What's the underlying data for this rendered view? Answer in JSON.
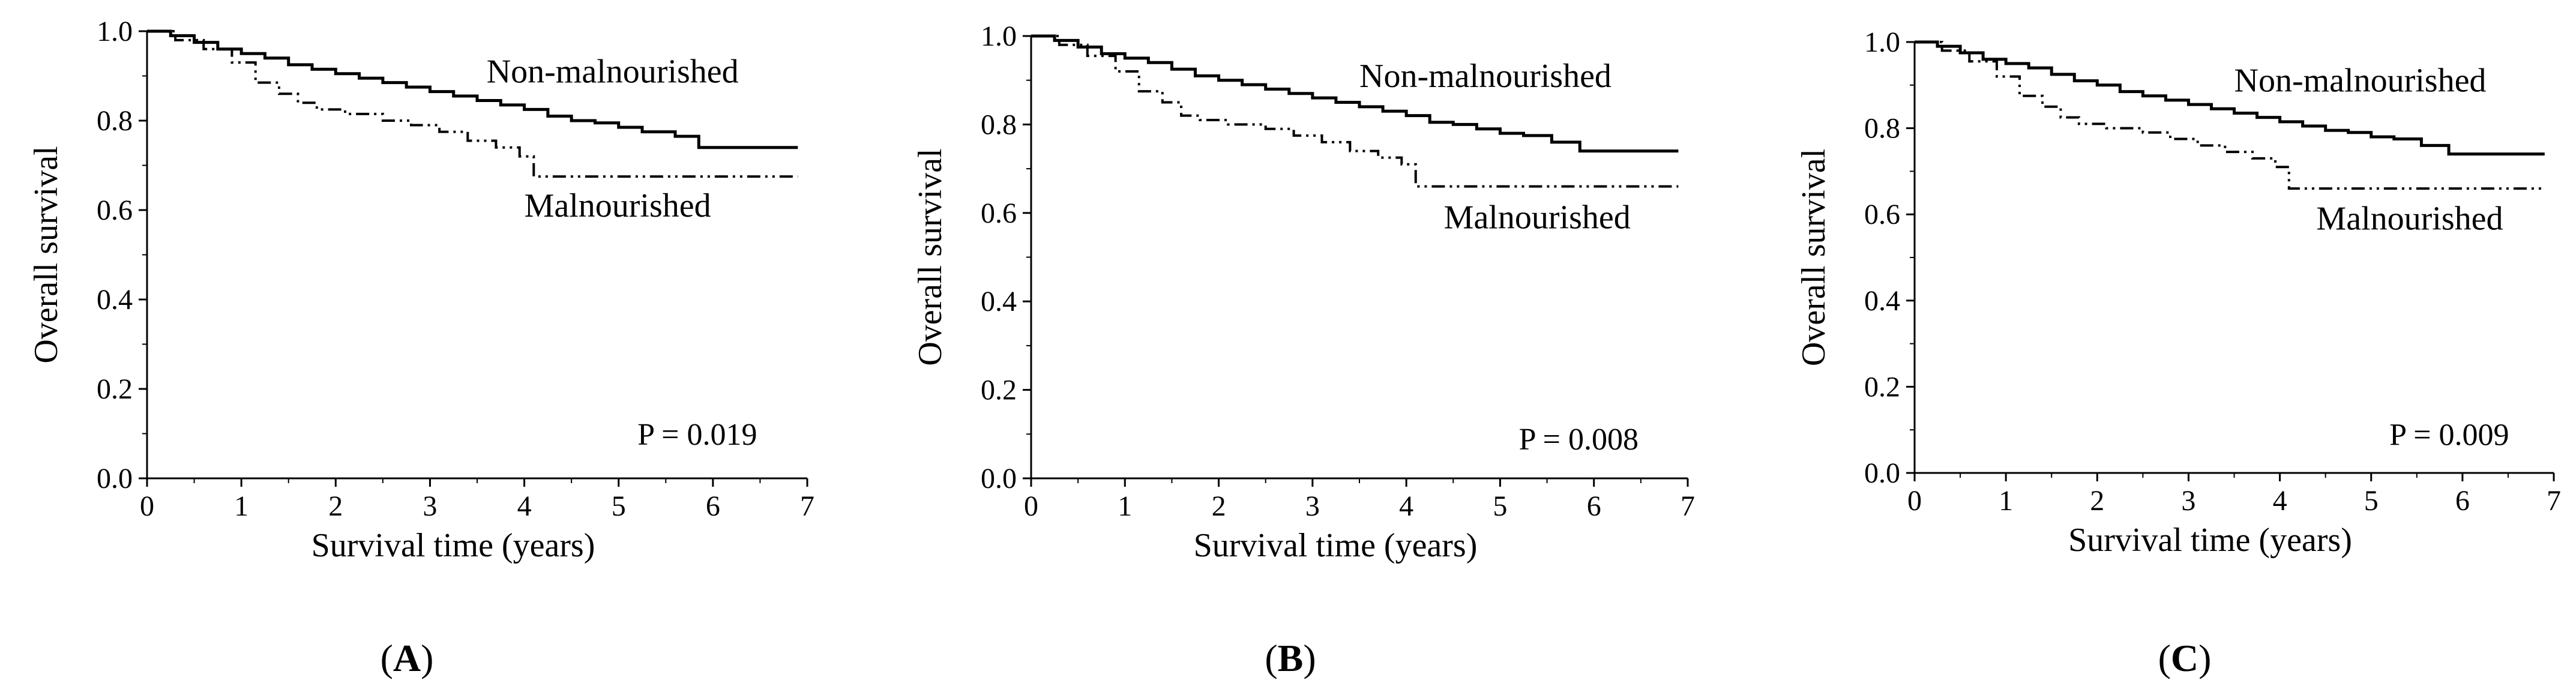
{
  "chart_data": [
    {
      "type": "line",
      "panel": "A",
      "xlabel": "Survival time (years)",
      "ylabel": "Overall survival",
      "xlim": [
        0,
        7
      ],
      "ylim": [
        0.0,
        1.0
      ],
      "xticks": [
        "0",
        "1",
        "2",
        "3",
        "4",
        "5",
        "6",
        "7"
      ],
      "yticks": [
        "0.0",
        "0.2",
        "0.4",
        "0.6",
        "0.8",
        "1.0"
      ],
      "p_value": "P = 0.019",
      "series": [
        {
          "name": "Non-malnourished",
          "style": "solid",
          "points": [
            [
              0,
              1.0
            ],
            [
              0.25,
              0.99
            ],
            [
              0.5,
              0.975
            ],
            [
              0.75,
              0.96
            ],
            [
              1.0,
              0.95
            ],
            [
              1.25,
              0.94
            ],
            [
              1.5,
              0.925
            ],
            [
              1.75,
              0.915
            ],
            [
              2.0,
              0.905
            ],
            [
              2.25,
              0.895
            ],
            [
              2.5,
              0.885
            ],
            [
              2.75,
              0.875
            ],
            [
              3.0,
              0.865
            ],
            [
              3.25,
              0.855
            ],
            [
              3.5,
              0.845
            ],
            [
              3.75,
              0.835
            ],
            [
              4.0,
              0.825
            ],
            [
              4.25,
              0.81
            ],
            [
              4.5,
              0.8
            ],
            [
              4.75,
              0.795
            ],
            [
              5.0,
              0.785
            ],
            [
              5.25,
              0.775
            ],
            [
              5.6,
              0.765
            ],
            [
              5.85,
              0.74
            ],
            [
              6.9,
              0.74
            ]
          ]
        },
        {
          "name": "Malnourished",
          "style": "dash-dot-dot",
          "points": [
            [
              0,
              1.0
            ],
            [
              0.3,
              0.98
            ],
            [
              0.6,
              0.96
            ],
            [
              0.9,
              0.93
            ],
            [
              1.15,
              0.885
            ],
            [
              1.4,
              0.86
            ],
            [
              1.6,
              0.84
            ],
            [
              1.8,
              0.825
            ],
            [
              2.1,
              0.815
            ],
            [
              2.5,
              0.8
            ],
            [
              2.8,
              0.79
            ],
            [
              3.1,
              0.775
            ],
            [
              3.4,
              0.755
            ],
            [
              3.7,
              0.74
            ],
            [
              3.95,
              0.72
            ],
            [
              4.1,
              0.675
            ],
            [
              5.0,
              0.675
            ],
            [
              6.9,
              0.675
            ]
          ]
        }
      ]
    },
    {
      "type": "line",
      "panel": "B",
      "xlabel": "Survival time (years)",
      "ylabel": "Overall survival",
      "xlim": [
        0,
        7
      ],
      "ylim": [
        0.0,
        1.0
      ],
      "xticks": [
        "0",
        "1",
        "2",
        "3",
        "4",
        "5",
        "6",
        "7"
      ],
      "yticks": [
        "0.0",
        "0.2",
        "0.4",
        "0.6",
        "0.8",
        "1.0"
      ],
      "p_value": "P = 0.008",
      "series": [
        {
          "name": "Non-malnourished",
          "style": "solid",
          "points": [
            [
              0,
              1.0
            ],
            [
              0.25,
              0.99
            ],
            [
              0.5,
              0.975
            ],
            [
              0.75,
              0.96
            ],
            [
              1.0,
              0.95
            ],
            [
              1.25,
              0.94
            ],
            [
              1.5,
              0.925
            ],
            [
              1.75,
              0.91
            ],
            [
              2.0,
              0.9
            ],
            [
              2.25,
              0.89
            ],
            [
              2.5,
              0.88
            ],
            [
              2.75,
              0.87
            ],
            [
              3.0,
              0.86
            ],
            [
              3.25,
              0.85
            ],
            [
              3.5,
              0.84
            ],
            [
              3.75,
              0.83
            ],
            [
              4.0,
              0.82
            ],
            [
              4.25,
              0.805
            ],
            [
              4.5,
              0.8
            ],
            [
              4.75,
              0.79
            ],
            [
              5.0,
              0.78
            ],
            [
              5.25,
              0.775
            ],
            [
              5.55,
              0.76
            ],
            [
              5.85,
              0.74
            ],
            [
              6.9,
              0.74
            ]
          ]
        },
        {
          "name": "Malnourished",
          "style": "dash-dot-dot",
          "points": [
            [
              0,
              1.0
            ],
            [
              0.3,
              0.98
            ],
            [
              0.6,
              0.955
            ],
            [
              0.9,
              0.92
            ],
            [
              1.15,
              0.875
            ],
            [
              1.4,
              0.85
            ],
            [
              1.6,
              0.82
            ],
            [
              1.8,
              0.81
            ],
            [
              2.1,
              0.8
            ],
            [
              2.5,
              0.79
            ],
            [
              2.8,
              0.775
            ],
            [
              3.1,
              0.76
            ],
            [
              3.4,
              0.74
            ],
            [
              3.7,
              0.725
            ],
            [
              3.95,
              0.71
            ],
            [
              4.1,
              0.66
            ],
            [
              5.0,
              0.66
            ],
            [
              6.9,
              0.66
            ]
          ]
        }
      ]
    },
    {
      "type": "line",
      "panel": "C",
      "xlabel": "Survival time (years)",
      "ylabel": "Overall survival",
      "xlim": [
        0,
        7
      ],
      "ylim": [
        0.0,
        1.0
      ],
      "xticks": [
        "0",
        "1",
        "2",
        "3",
        "4",
        "5",
        "6",
        "7"
      ],
      "yticks": [
        "0.0",
        "0.2",
        "0.4",
        "0.6",
        "0.8",
        "1.0"
      ],
      "p_value": "P = 0.009",
      "series": [
        {
          "name": "Non-malnourished",
          "style": "solid",
          "points": [
            [
              0,
              1.0
            ],
            [
              0.25,
              0.99
            ],
            [
              0.5,
              0.975
            ],
            [
              0.75,
              0.96
            ],
            [
              1.0,
              0.95
            ],
            [
              1.25,
              0.94
            ],
            [
              1.5,
              0.925
            ],
            [
              1.75,
              0.91
            ],
            [
              2.0,
              0.9
            ],
            [
              2.25,
              0.885
            ],
            [
              2.5,
              0.875
            ],
            [
              2.75,
              0.865
            ],
            [
              3.0,
              0.855
            ],
            [
              3.25,
              0.845
            ],
            [
              3.5,
              0.835
            ],
            [
              3.75,
              0.825
            ],
            [
              4.0,
              0.815
            ],
            [
              4.25,
              0.805
            ],
            [
              4.5,
              0.795
            ],
            [
              4.75,
              0.79
            ],
            [
              5.0,
              0.78
            ],
            [
              5.25,
              0.775
            ],
            [
              5.55,
              0.76
            ],
            [
              5.85,
              0.74
            ],
            [
              6.9,
              0.74
            ]
          ]
        },
        {
          "name": "Malnourished",
          "style": "dash-dot-dot",
          "points": [
            [
              0,
              1.0
            ],
            [
              0.3,
              0.98
            ],
            [
              0.6,
              0.955
            ],
            [
              0.9,
              0.92
            ],
            [
              1.15,
              0.875
            ],
            [
              1.4,
              0.85
            ],
            [
              1.6,
              0.825
            ],
            [
              1.8,
              0.81
            ],
            [
              2.1,
              0.8
            ],
            [
              2.5,
              0.79
            ],
            [
              2.8,
              0.775
            ],
            [
              3.1,
              0.76
            ],
            [
              3.4,
              0.745
            ],
            [
              3.7,
              0.73
            ],
            [
              3.95,
              0.71
            ],
            [
              4.1,
              0.66
            ],
            [
              5.0,
              0.66
            ],
            [
              6.9,
              0.66
            ]
          ]
        }
      ]
    }
  ]
}
